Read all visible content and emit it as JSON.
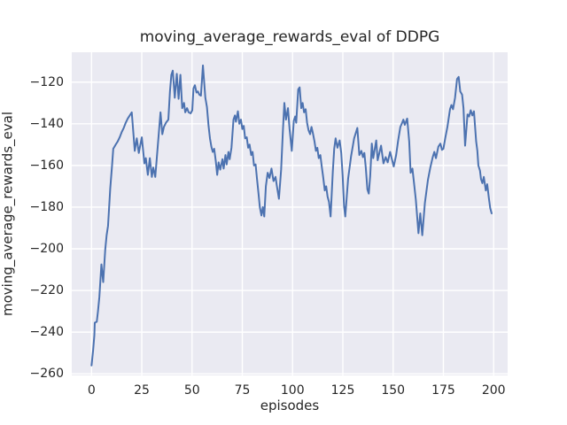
{
  "figure": {
    "background": "#ffffff"
  },
  "chart_data": {
    "type": "line",
    "title": "moving_average_rewards_eval of DDPG",
    "xlabel": "episodes",
    "ylabel": "moving_average_rewards_eval",
    "x_ticks": [
      0,
      25,
      50,
      75,
      100,
      125,
      150,
      175,
      200
    ],
    "x_tick_labels": [
      "0",
      "25",
      "50",
      "75",
      "100",
      "125",
      "150",
      "175",
      "200"
    ],
    "y_ticks": [
      -120,
      -140,
      -160,
      -180,
      -200,
      -220,
      -240,
      -260
    ],
    "y_tick_labels": [
      "−120",
      "−140",
      "−160",
      "−180",
      "−200",
      "−220",
      "−240",
      "−260"
    ],
    "xlim": [
      -9.84,
      206.96
    ],
    "ylim": [
      -260.77,
      -105.66
    ],
    "grid": true,
    "legend_position": "none",
    "style": {
      "line_color": "#4C72B0",
      "line_width": 2,
      "plot_background": "#EAEAF2",
      "grid_color": "#FFFFFF",
      "text_color": "#262626"
    },
    "series": [
      {
        "name": "moving_average_rewards_eval",
        "x": [
          0,
          0.8,
          1.4,
          1.6,
          2.6,
          3.2,
          3.9,
          4.9,
          5.8,
          6.8,
          7.5,
          8.2,
          9.3,
          10.2,
          10.8,
          12,
          13,
          14,
          15,
          16,
          17,
          18,
          19,
          20,
          21.5,
          22.5,
          23.5,
          25,
          26.3,
          27,
          28,
          29,
          30,
          30.7,
          31.7,
          33,
          34.3,
          35.2,
          36,
          37,
          38.2,
          39,
          39.7,
          40.4,
          41.4,
          42.4,
          43.3,
          44.2,
          45.1,
          46,
          46.6,
          47.5,
          48.3,
          49.3,
          50.1,
          50.7,
          51.4,
          52.2,
          52.9,
          53.6,
          54.4,
          55.4,
          56.6,
          57.4,
          58.2,
          58.9,
          59.6,
          60.3,
          61,
          61.8,
          62.5,
          63.2,
          64,
          65.1,
          65.7,
          66.6,
          67.2,
          68.1,
          68.7,
          69.6,
          70.6,
          71.3,
          71.8,
          72.8,
          73.5,
          74.3,
          75,
          75.7,
          76.4,
          77.2,
          77.9,
          78.6,
          79.4,
          80.1,
          80.8,
          81.6,
          82.3,
          83,
          83.7,
          84.5,
          85.2,
          85.9,
          86.7,
          87.6,
          88.5,
          89.5,
          90.5,
          91.5,
          92.2,
          93.2,
          94.3,
          95.2,
          95.9,
          96.7,
          97.7,
          98.5,
          99.6,
          100.6,
          101.3,
          101.8,
          102.8,
          103.5,
          104.3,
          105,
          105.7,
          106.5,
          107.2,
          107.9,
          108.7,
          109.4,
          110.1,
          110.9,
          111.6,
          112.3,
          113,
          113.8,
          114.5,
          115.2,
          116,
          116.7,
          117.4,
          118.1,
          118.9,
          120,
          120.7,
          121.4,
          122.3,
          123.4,
          124.2,
          124.9,
          125.6,
          126.2,
          127.6,
          129.1,
          130.6,
          132.2,
          133.2,
          134.2,
          135,
          135.7,
          136.4,
          137.2,
          137.9,
          138.6,
          139.4,
          140.1,
          141.6,
          142.3,
          144,
          145.2,
          146.3,
          147.3,
          148.5,
          150.3,
          151.5,
          152.5,
          153.6,
          154.5,
          155.1,
          155.8,
          157,
          158,
          158.7,
          159.6,
          160.4,
          161.3,
          162.6,
          163.5,
          164.5,
          165.8,
          167.3,
          168.5,
          169.7,
          170.5,
          171.3,
          172.5,
          173.5,
          174.3,
          175,
          176,
          177,
          178.3,
          179,
          179.8,
          180.8,
          181.8,
          182.6,
          183.4,
          184.3,
          185,
          185.8,
          187,
          187.8,
          188.6,
          189.4,
          190.2,
          191.3,
          191.9,
          192.4,
          193.2,
          193.7,
          194.4,
          195.1,
          196.1,
          196.8,
          197.6,
          198.3,
          199
        ],
        "y": [
          -256,
          -248.5,
          -241.5,
          -235.5,
          -235,
          -230,
          -223,
          -207.5,
          -216,
          -200.5,
          -193.5,
          -189,
          -171,
          -160,
          -152,
          -150,
          -148.5,
          -146.5,
          -144,
          -142,
          -139.5,
          -137.5,
          -136,
          -134.5,
          -153,
          -147,
          -154,
          -146.5,
          -159,
          -156.5,
          -164.5,
          -156.5,
          -165.5,
          -161,
          -165.5,
          -150,
          -134.5,
          -145,
          -141.5,
          -139.5,
          -138,
          -124.5,
          -116.5,
          -114.5,
          -127.5,
          -116,
          -128,
          -116.5,
          -132.5,
          -130,
          -134.5,
          -132.5,
          -134.5,
          -135,
          -133.5,
          -123,
          -121.5,
          -125,
          -124.5,
          -126,
          -126.5,
          -112,
          -127.5,
          -132,
          -141,
          -147,
          -151,
          -153.5,
          -152,
          -158,
          -164.5,
          -158.5,
          -162,
          -157,
          -161.5,
          -155,
          -159.5,
          -153.5,
          -157,
          -151.5,
          -138,
          -136,
          -139,
          -134,
          -140,
          -138,
          -142.5,
          -141,
          -147,
          -146.5,
          -151.5,
          -150,
          -155,
          -153.5,
          -160,
          -159.5,
          -166.5,
          -173,
          -180,
          -184,
          -180,
          -184.5,
          -170,
          -163.5,
          -166,
          -161.5,
          -167.5,
          -165.5,
          -170,
          -176,
          -162,
          -143,
          -130,
          -138,
          -132.5,
          -142.5,
          -153,
          -138.5,
          -136.5,
          -139.5,
          -123.5,
          -122.5,
          -132.5,
          -130,
          -134.5,
          -133,
          -139.5,
          -143,
          -145,
          -141.5,
          -144.5,
          -148.5,
          -153,
          -151.5,
          -156.5,
          -155,
          -160.5,
          -165.5,
          -172,
          -170,
          -175,
          -177.5,
          -184.5,
          -163,
          -152,
          -147,
          -151.5,
          -148,
          -154,
          -165,
          -179.5,
          -184.5,
          -166.5,
          -155.5,
          -147,
          -142,
          -155,
          -153,
          -156,
          -154,
          -161,
          -171.5,
          -173.5,
          -165,
          -149.5,
          -156.5,
          -148,
          -157.5,
          -150.5,
          -159,
          -156,
          -158.5,
          -153.5,
          -160.5,
          -155,
          -148,
          -141.5,
          -139.5,
          -138,
          -140.5,
          -137.5,
          -148.5,
          -163.5,
          -161.5,
          -168.5,
          -176.5,
          -192.5,
          -183,
          -193.5,
          -178,
          -167,
          -161,
          -156,
          -153.5,
          -156.5,
          -151,
          -149.5,
          -152.5,
          -152,
          -146.5,
          -141.5,
          -133,
          -131,
          -133,
          -127.5,
          -118.5,
          -117.5,
          -124.5,
          -126,
          -132.5,
          -150.5,
          -135.5,
          -136.5,
          -133.5,
          -136,
          -134,
          -148.5,
          -153,
          -160,
          -162.5,
          -166.5,
          -168.5,
          -165.5,
          -172,
          -169,
          -175.5,
          -180.5,
          -183
        ]
      }
    ]
  }
}
